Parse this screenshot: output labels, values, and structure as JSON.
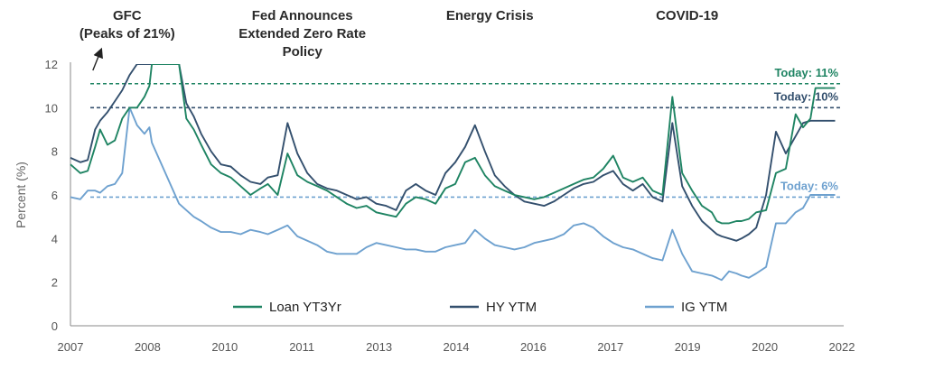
{
  "chart_data": {
    "type": "line",
    "ylabel": "Percent (%)",
    "ylim": [
      0,
      12
    ],
    "y_ticks": [
      "0",
      "2",
      "4",
      "6",
      "8",
      "10",
      "12"
    ],
    "x_range": [
      2007.0,
      2022.6
    ],
    "x_tick_labels": [
      "2007",
      "2008",
      "2010",
      "2011",
      "2013",
      "2014",
      "2016",
      "2017",
      "2019",
      "2020",
      "2022"
    ],
    "legend_position": "bottom",
    "grid": false,
    "series": [
      {
        "name": "Loan YT3Yr",
        "color": "#1f8463",
        "x": [
          2007.0,
          2007.2,
          2007.35,
          2007.5,
          2007.6,
          2007.75,
          2007.9,
          2008.05,
          2008.2,
          2008.35,
          2008.5,
          2008.6,
          2008.65,
          2009.2,
          2009.35,
          2009.5,
          2009.65,
          2009.85,
          2010.05,
          2010.25,
          2010.45,
          2010.65,
          2010.85,
          2011.0,
          2011.2,
          2011.4,
          2011.6,
          2011.8,
          2012.0,
          2012.2,
          2012.4,
          2012.6,
          2012.8,
          2013.0,
          2013.2,
          2013.4,
          2013.6,
          2013.8,
          2014.0,
          2014.2,
          2014.4,
          2014.6,
          2014.8,
          2015.0,
          2015.2,
          2015.4,
          2015.6,
          2015.8,
          2016.0,
          2016.2,
          2016.4,
          2016.6,
          2016.8,
          2017.0,
          2017.2,
          2017.4,
          2017.6,
          2017.8,
          2018.0,
          2018.2,
          2018.4,
          2018.6,
          2018.8,
          2019.0,
          2019.2,
          2019.4,
          2019.6,
          2019.8,
          2020.0,
          2020.1,
          2020.2,
          2020.35,
          2020.5,
          2020.6,
          2020.75,
          2020.9,
          2021.1,
          2021.3,
          2021.5,
          2021.7,
          2021.85,
          2022.0,
          2022.1,
          2022.2,
          2022.3,
          2022.4,
          2022.5
        ],
        "values": [
          7.4,
          7.0,
          7.1,
          8.2,
          9.0,
          8.3,
          8.5,
          9.5,
          10.0,
          10.0,
          10.5,
          11.0,
          12.0,
          12.0,
          9.5,
          9.0,
          8.3,
          7.4,
          7.0,
          6.8,
          6.4,
          6.0,
          6.3,
          6.5,
          6.0,
          7.9,
          6.9,
          6.6,
          6.4,
          6.2,
          5.9,
          5.6,
          5.4,
          5.5,
          5.2,
          5.1,
          5.0,
          5.6,
          5.9,
          5.8,
          5.6,
          6.3,
          6.5,
          7.5,
          7.7,
          6.9,
          6.4,
          6.2,
          6.0,
          5.9,
          5.8,
          5.9,
          6.1,
          6.3,
          6.5,
          6.7,
          6.8,
          7.2,
          7.8,
          6.8,
          6.6,
          6.8,
          6.2,
          6.0,
          10.5,
          7.0,
          6.2,
          5.5,
          5.2,
          4.8,
          4.7,
          4.7,
          4.8,
          4.8,
          4.9,
          5.2,
          5.3,
          7.0,
          7.2,
          9.7,
          9.1,
          9.5,
          10.9,
          10.9,
          10.9,
          10.9,
          10.9
        ]
      },
      {
        "name": "HY YTM",
        "color": "#34506e",
        "x": [
          2007.0,
          2007.2,
          2007.35,
          2007.5,
          2007.6,
          2007.75,
          2007.9,
          2008.05,
          2008.2,
          2008.35,
          2008.5,
          2008.6,
          2008.65,
          2009.2,
          2009.35,
          2009.5,
          2009.65,
          2009.85,
          2010.05,
          2010.25,
          2010.45,
          2010.65,
          2010.85,
          2011.0,
          2011.2,
          2011.4,
          2011.6,
          2011.8,
          2012.0,
          2012.2,
          2012.4,
          2012.6,
          2012.8,
          2013.0,
          2013.2,
          2013.4,
          2013.6,
          2013.8,
          2014.0,
          2014.2,
          2014.4,
          2014.6,
          2014.8,
          2015.0,
          2015.2,
          2015.4,
          2015.6,
          2015.8,
          2016.0,
          2016.2,
          2016.4,
          2016.6,
          2016.8,
          2017.0,
          2017.2,
          2017.4,
          2017.6,
          2017.8,
          2018.0,
          2018.2,
          2018.4,
          2018.6,
          2018.8,
          2019.0,
          2019.2,
          2019.4,
          2019.6,
          2019.8,
          2020.0,
          2020.1,
          2020.2,
          2020.35,
          2020.5,
          2020.6,
          2020.75,
          2020.9,
          2021.1,
          2021.3,
          2021.5,
          2021.7,
          2021.85,
          2022.0,
          2022.1,
          2022.2,
          2022.3,
          2022.4,
          2022.5
        ],
        "values": [
          7.7,
          7.5,
          7.6,
          9.0,
          9.4,
          9.8,
          10.3,
          10.8,
          11.5,
          12.0,
          12.0,
          12.0,
          12.0,
          12.0,
          10.2,
          9.6,
          8.8,
          8.0,
          7.4,
          7.3,
          6.9,
          6.6,
          6.5,
          6.8,
          6.9,
          9.3,
          7.9,
          7.0,
          6.5,
          6.3,
          6.2,
          6.0,
          5.8,
          5.9,
          5.6,
          5.5,
          5.3,
          6.2,
          6.5,
          6.2,
          6.0,
          7.0,
          7.5,
          8.2,
          9.2,
          8.0,
          6.9,
          6.4,
          6.0,
          5.7,
          5.6,
          5.5,
          5.7,
          6.0,
          6.3,
          6.5,
          6.6,
          6.9,
          7.1,
          6.5,
          6.2,
          6.5,
          5.9,
          5.7,
          9.3,
          6.4,
          5.5,
          4.8,
          4.4,
          4.2,
          4.1,
          4.0,
          3.9,
          4.0,
          4.2,
          4.5,
          6.0,
          8.9,
          7.9,
          8.7,
          9.3,
          9.4,
          9.4,
          9.4,
          9.4,
          9.4,
          9.4
        ]
      },
      {
        "name": "IG YTM",
        "color": "#6ea1cf",
        "x": [
          2007.0,
          2007.2,
          2007.35,
          2007.5,
          2007.6,
          2007.75,
          2007.9,
          2008.05,
          2008.2,
          2008.35,
          2008.5,
          2008.6,
          2008.65,
          2009.2,
          2009.35,
          2009.5,
          2009.65,
          2009.85,
          2010.05,
          2010.25,
          2010.45,
          2010.65,
          2010.85,
          2011.0,
          2011.2,
          2011.4,
          2011.6,
          2011.8,
          2012.0,
          2012.2,
          2012.4,
          2012.6,
          2012.8,
          2013.0,
          2013.2,
          2013.4,
          2013.6,
          2013.8,
          2014.0,
          2014.2,
          2014.4,
          2014.6,
          2014.8,
          2015.0,
          2015.2,
          2015.4,
          2015.6,
          2015.8,
          2016.0,
          2016.2,
          2016.4,
          2016.6,
          2016.8,
          2017.0,
          2017.2,
          2017.4,
          2017.6,
          2017.8,
          2018.0,
          2018.2,
          2018.4,
          2018.6,
          2018.8,
          2019.0,
          2019.2,
          2019.4,
          2019.6,
          2019.8,
          2020.0,
          2020.1,
          2020.2,
          2020.35,
          2020.5,
          2020.6,
          2020.75,
          2020.9,
          2021.1,
          2021.3,
          2021.5,
          2021.7,
          2021.85,
          2022.0,
          2022.1,
          2022.2,
          2022.3,
          2022.4,
          2022.5
        ],
        "values": [
          5.9,
          5.8,
          6.2,
          6.2,
          6.1,
          6.4,
          6.5,
          7.0,
          10.0,
          9.2,
          8.8,
          9.1,
          8.4,
          5.6,
          5.3,
          5.0,
          4.8,
          4.5,
          4.3,
          4.3,
          4.2,
          4.4,
          4.3,
          4.2,
          4.4,
          4.6,
          4.1,
          3.9,
          3.7,
          3.4,
          3.3,
          3.3,
          3.3,
          3.6,
          3.8,
          3.7,
          3.6,
          3.5,
          3.5,
          3.4,
          3.4,
          3.6,
          3.7,
          3.8,
          4.4,
          4.0,
          3.7,
          3.6,
          3.5,
          3.6,
          3.8,
          3.9,
          4.0,
          4.2,
          4.6,
          4.7,
          4.5,
          4.1,
          3.8,
          3.6,
          3.5,
          3.3,
          3.1,
          3.0,
          4.4,
          3.3,
          2.5,
          2.4,
          2.3,
          2.2,
          2.1,
          2.5,
          2.4,
          2.3,
          2.2,
          2.4,
          2.7,
          4.7,
          4.7,
          5.2,
          5.4,
          6.0,
          6.0,
          6.0,
          6.0,
          6.0,
          6.0
        ]
      }
    ],
    "reference_lines": [
      {
        "label": "Today: 11%",
        "value": 11.1,
        "color": "#1f8463"
      },
      {
        "label": "Today: 10%",
        "value": 10.0,
        "color": "#34506e"
      },
      {
        "label": "Today: 6%",
        "value": 5.9,
        "color": "#6ea1cf"
      }
    ],
    "annotations": [
      {
        "lines": [
          "GFC",
          "(Peaks of 21%)"
        ],
        "x": 2008.15,
        "arrow": true
      },
      {
        "lines": [
          "Fed Announces",
          "Extended Zero Rate",
          "Policy"
        ],
        "x": 2011.7,
        "arrow": false
      },
      {
        "lines": [
          "Energy Crisis"
        ],
        "x": 2015.5,
        "arrow": false
      },
      {
        "lines": [
          "COVID-19"
        ],
        "x": 2019.5,
        "arrow": false
      }
    ]
  }
}
